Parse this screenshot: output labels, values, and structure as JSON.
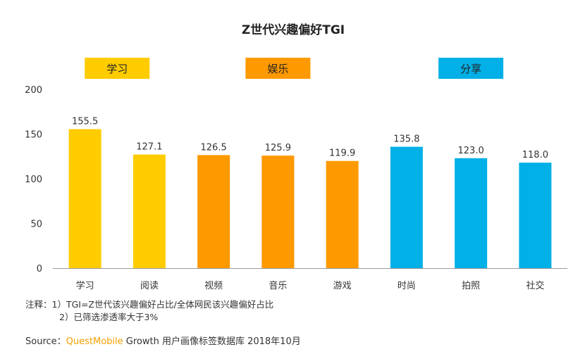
{
  "chart_data": {
    "type": "bar",
    "title": "Z世代兴趣偏好TGI",
    "categories": [
      "学习",
      "阅读",
      "视频",
      "音乐",
      "游戏",
      "时尚",
      "拍照",
      "社交"
    ],
    "values": [
      155.5,
      127.1,
      126.5,
      125.9,
      119.9,
      135.8,
      123.0,
      118.0
    ],
    "value_labels": [
      "155.5",
      "127.1",
      "126.5",
      "125.9",
      "119.9",
      "135.8",
      "123.0",
      "118.0"
    ],
    "groups": [
      {
        "name": "学习",
        "color": "#FFCC00",
        "categories": [
          "学习",
          "阅读"
        ]
      },
      {
        "name": "娱乐",
        "color": "#FF9900",
        "categories": [
          "视频",
          "音乐",
          "游戏"
        ]
      },
      {
        "name": "分享",
        "color": "#00B0E6",
        "categories": [
          "时尚",
          "拍照",
          "社交"
        ]
      }
    ],
    "ylim": [
      0,
      200
    ],
    "yticks": [
      0,
      50,
      100,
      150,
      200
    ],
    "grid": false,
    "xlabel": "",
    "ylabel": ""
  },
  "notes": {
    "line1": "注释：1）TGI=Z世代该兴趣偏好占比/全体网民该兴趣偏好占比",
    "line2": "2）已筛选渗透率大于3%"
  },
  "source": {
    "prefix": "Source：",
    "brand": "QuestMobile",
    "suffix": " Growth 用户画像标签数据库 2018年10月"
  }
}
